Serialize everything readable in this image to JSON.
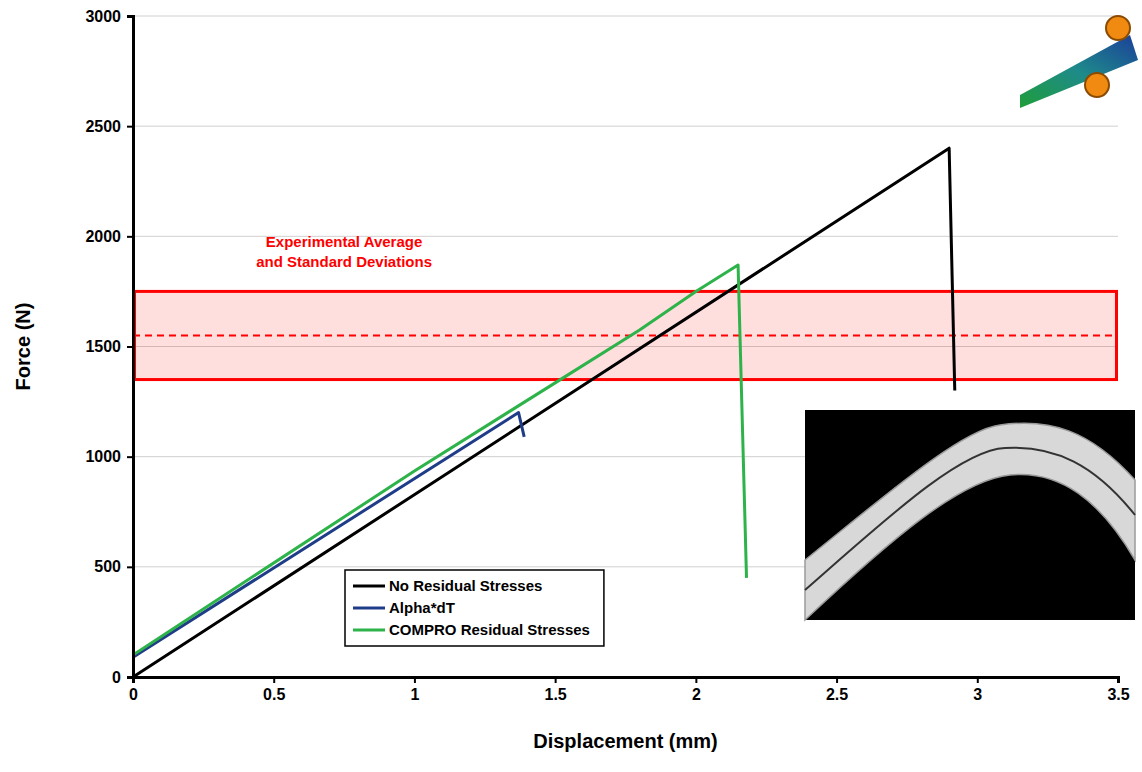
{
  "chart_data": {
    "type": "line",
    "x_label": "Displacement (mm)",
    "y_label": "Force (N)",
    "xlim": [
      0,
      3.5
    ],
    "xticks": [
      0,
      0.5,
      1,
      1.5,
      2,
      2.5,
      3,
      3.5
    ],
    "ylim": [
      0,
      3000
    ],
    "yticks": [
      0,
      500,
      1000,
      1500,
      2000,
      2500,
      3000
    ],
    "grid": true,
    "legend": "lower center",
    "series": [
      {
        "name": "No Residual Stresses",
        "color": "#000000",
        "x": [
          0,
          2.9,
          2.92
        ],
        "values": [
          0,
          2400,
          1300
        ]
      },
      {
        "name": "Alpha*dT",
        "color": "#1f3c88",
        "x": [
          0,
          1.37,
          1.39
        ],
        "values": [
          90,
          1200,
          1090
        ]
      },
      {
        "name": "COMPRO Residual Stresses",
        "color": "#2db34a",
        "x": [
          0,
          1.0,
          1.5,
          1.8,
          2.0,
          2.15,
          2.18
        ],
        "values": [
          100,
          935,
          1335,
          1575,
          1750,
          1870,
          450
        ]
      }
    ],
    "experimental": {
      "label_lines": [
        "Experimental Average",
        "and Standard Deviations"
      ],
      "mean": 1550,
      "std": 200,
      "color": "#ff0000"
    }
  }
}
